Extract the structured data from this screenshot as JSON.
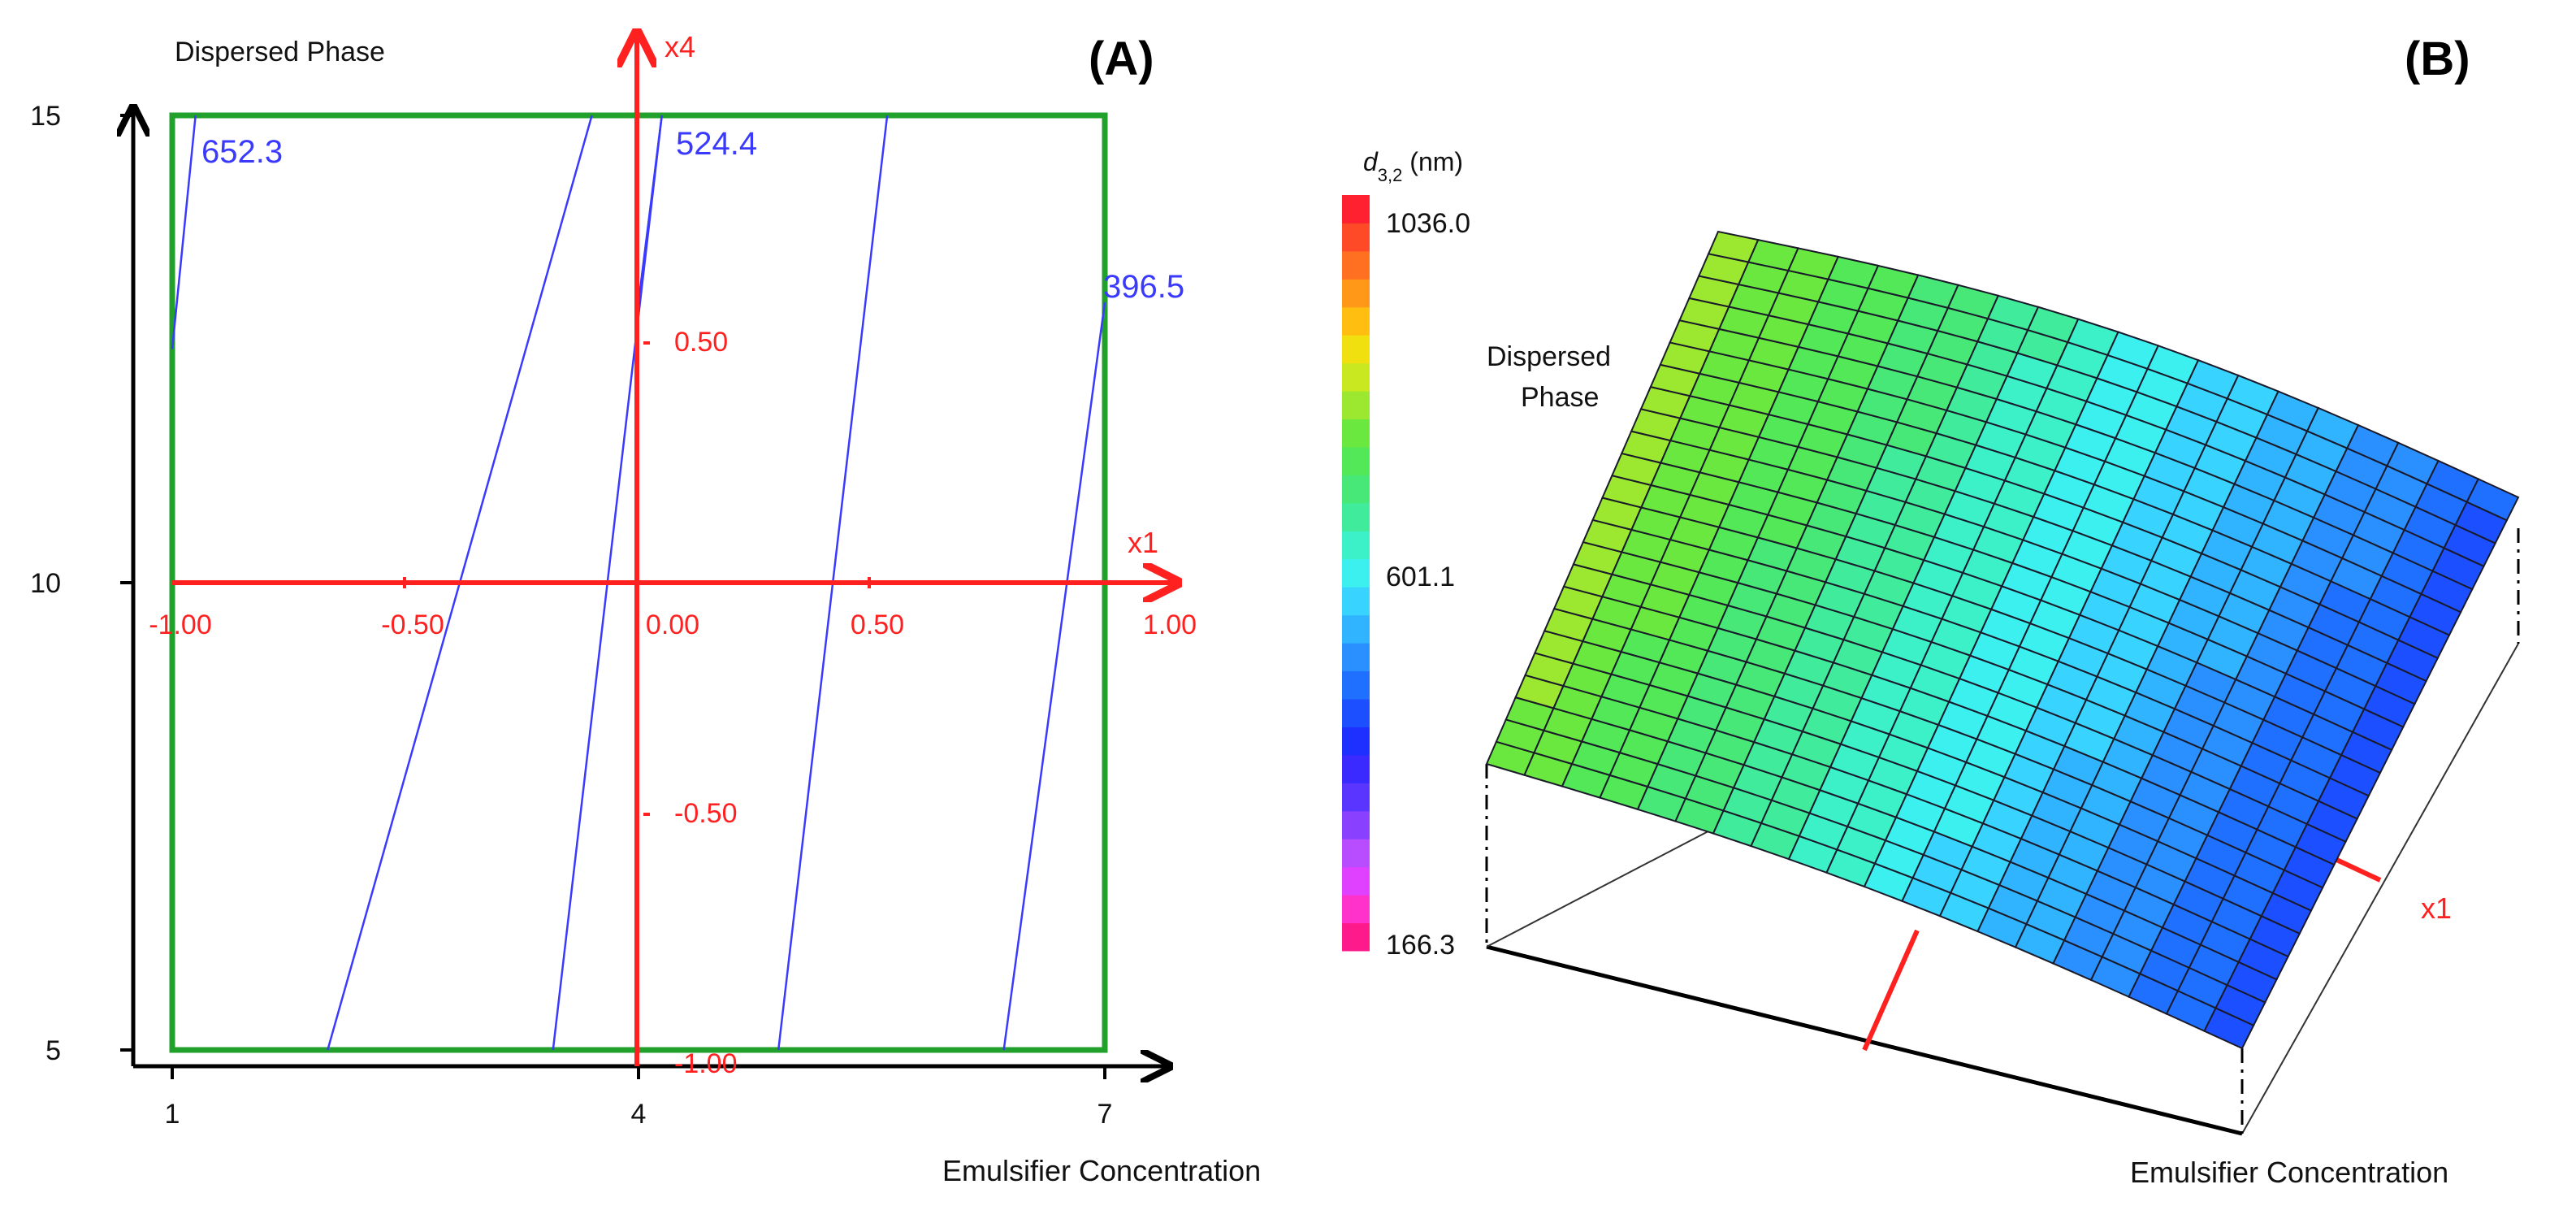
{
  "chart_data": [
    {
      "type": "contour",
      "panel_label": "(A)",
      "xlabel": "Emulsifier Concentration",
      "ylabel": "Dispersed Phase",
      "x_ticks": [
        "1",
        "4",
        "7"
      ],
      "y_ticks": [
        "5",
        "10",
        "15"
      ],
      "xlim": [
        1,
        7
      ],
      "ylim": [
        5,
        15
      ],
      "coded_axes": {
        "x_name": "x1",
        "y_name": "x4",
        "x_ticks": [
          "-1.00",
          "-0.50",
          "0.00",
          "0.50",
          "1.00"
        ],
        "y_ticks": [
          "-1.00",
          "-0.50",
          "0.50"
        ]
      },
      "contour_labels": [
        "652.3",
        "524.4",
        "396.5"
      ],
      "contour_lines": [
        {
          "x": [
            2.0,
            3.7
          ]
        },
        {
          "x": [
            3.45,
            4.15
          ]
        },
        {
          "x": [
            4.9,
            5.6
          ]
        },
        {
          "x": [
            6.35,
            7.0
          ],
          "y": [
            5,
            13
          ]
        },
        {
          "x": [
            1.0,
            1.15
          ],
          "y": [
            12.5,
            15
          ]
        },
        {
          "x": [
            4.0,
            4.15
          ],
          "y": [
            13,
            15
          ]
        }
      ]
    },
    {
      "type": "surface",
      "panel_label": "(B)",
      "xlabel": "Emulsifier Concentration",
      "ylabel": "Dispersed Phase",
      "x_axis_marker": "x1",
      "colorbar": {
        "title_main": "d",
        "title_sub": "3,2",
        "title_unit": " (nm)",
        "ticks": [
          "1036.0",
          "601.1",
          "166.3"
        ],
        "range": [
          166.3,
          1036.0
        ]
      },
      "surface_range": [
        400,
        800
      ]
    }
  ],
  "colors": {
    "frame": "#22a02c",
    "coded_axes": "#ff2020",
    "contour": "#3a3aff",
    "axis": "#000000"
  }
}
